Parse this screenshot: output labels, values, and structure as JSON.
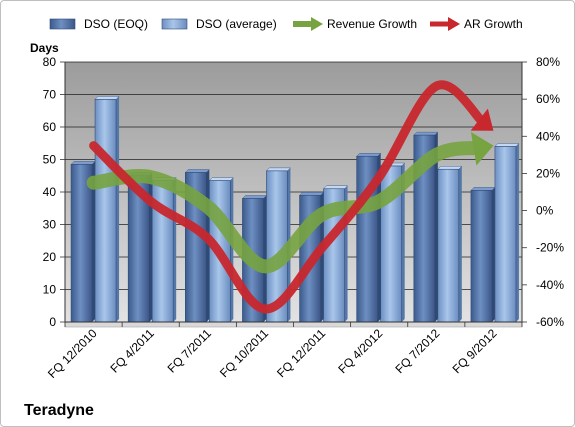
{
  "chart_data": {
    "type": "bar",
    "title": "",
    "company": "Teradyne",
    "ylabel": "Days",
    "ylim": [
      0,
      80
    ],
    "ystep": 10,
    "y2lim": [
      -60,
      80
    ],
    "y2step": 20,
    "y2_unit": "%",
    "grid": true,
    "legend_position": "top",
    "categories": [
      "FQ 12/2010",
      "FQ 4/2011",
      "FQ 7/2011",
      "FQ 10/2011",
      "FQ 12/2011",
      "FQ 4/2012",
      "FQ 7/2012",
      "FQ 9/2012"
    ],
    "series": [
      {
        "name": "DSO (EOQ)",
        "type": "bar",
        "axis": "left",
        "color": "#4f6fa3",
        "values": [
          48.5,
          45,
          46,
          38,
          39,
          51,
          57.5,
          40.5
        ]
      },
      {
        "name": "DSO (average)",
        "type": "bar",
        "axis": "left",
        "color": "#8eb1dd",
        "values": [
          68.5,
          43.5,
          43.5,
          46.5,
          41,
          48,
          47,
          54
        ]
      },
      {
        "name": "Revenue Growth",
        "type": "line",
        "axis": "right",
        "color": "#77a340",
        "values": [
          15,
          18,
          2,
          -30,
          -2,
          5,
          30,
          35
        ]
      },
      {
        "name": "AR Growth",
        "type": "line",
        "axis": "right",
        "color": "#c8272d",
        "values": [
          35,
          5,
          -15,
          -53,
          -20,
          18,
          67,
          43
        ]
      }
    ]
  }
}
